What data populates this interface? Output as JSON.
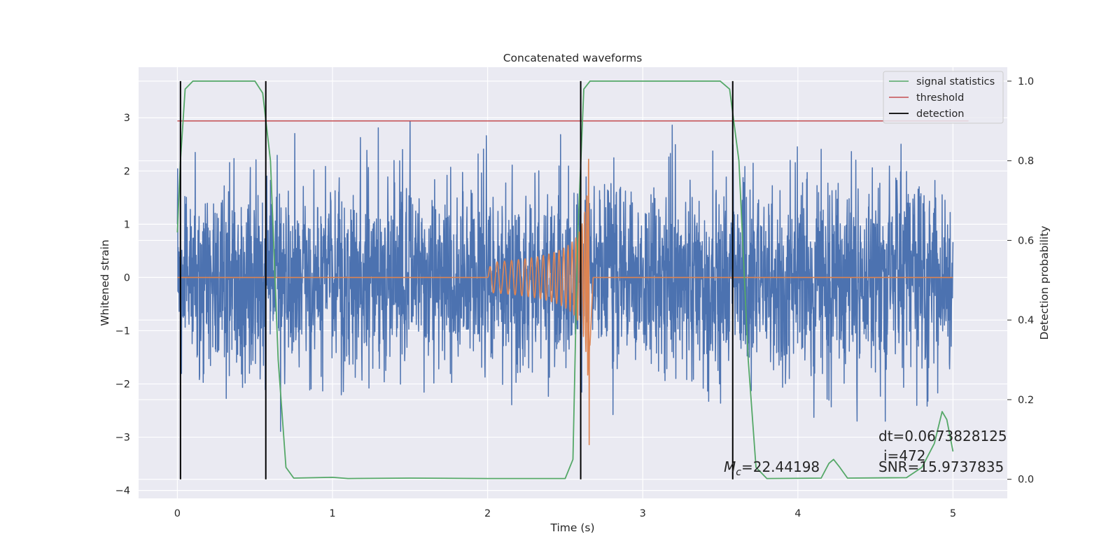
{
  "chart_data": {
    "type": "line",
    "title": "Concatenated waveforms",
    "xlabel": "Time (s)",
    "ylabel_left": "Whitened strain",
    "ylabel_right": "Detection probability",
    "xlim": [
      -0.25,
      5.35
    ],
    "ylim_left": [
      -4.15,
      3.95
    ],
    "ylim_right": [
      -0.048,
      1.035
    ],
    "x_ticks": [
      0,
      1,
      2,
      3,
      4,
      5
    ],
    "y_left_ticks": [
      -4,
      -3,
      -2,
      -1,
      0,
      1,
      2,
      3
    ],
    "y_right_ticks": [
      0.0,
      0.2,
      0.4,
      0.6,
      0.8,
      1.0
    ],
    "grid": true,
    "legend_position": "upper right",
    "legend": [
      {
        "label": "signal statistics",
        "color": "#55a868"
      },
      {
        "label": "threshold",
        "color": "#c44e52"
      },
      {
        "label": "detection",
        "color": "#000000"
      }
    ],
    "series": [
      {
        "axis": "left",
        "color": "#4c72b0",
        "x_range": [
          0,
          5
        ],
        "noise_std": 0.9,
        "peak_range": [
          -3.6,
          3.6
        ]
      },
      {
        "axis": "left",
        "color": "#dd8452",
        "chirp_start": 2.0,
        "chirp_merger": 2.66,
        "flat_value": 0,
        "peak_amplitude": 3.3
      },
      {
        "name": "signal statistics",
        "axis": "right",
        "color": "#55a868",
        "points": [
          [
            0.0,
            0.62
          ],
          [
            0.02,
            0.8
          ],
          [
            0.05,
            0.98
          ],
          [
            0.1,
            1.0
          ],
          [
            0.5,
            1.0
          ],
          [
            0.55,
            0.97
          ],
          [
            0.6,
            0.8
          ],
          [
            0.65,
            0.3
          ],
          [
            0.7,
            0.03
          ],
          [
            0.75,
            0.003
          ],
          [
            1.0,
            0.005
          ],
          [
            1.1,
            0.002
          ],
          [
            1.5,
            0.003
          ],
          [
            2.0,
            0.002
          ],
          [
            2.5,
            0.002
          ],
          [
            2.55,
            0.05
          ],
          [
            2.58,
            0.6
          ],
          [
            2.62,
            0.98
          ],
          [
            2.66,
            1.0
          ],
          [
            3.5,
            1.0
          ],
          [
            3.56,
            0.98
          ],
          [
            3.62,
            0.8
          ],
          [
            3.68,
            0.3
          ],
          [
            3.73,
            0.03
          ],
          [
            3.8,
            0.002
          ],
          [
            4.15,
            0.003
          ],
          [
            4.2,
            0.04
          ],
          [
            4.23,
            0.05
          ],
          [
            4.27,
            0.03
          ],
          [
            4.32,
            0.003
          ],
          [
            4.7,
            0.004
          ],
          [
            4.8,
            0.03
          ],
          [
            4.88,
            0.09
          ],
          [
            4.93,
            0.17
          ],
          [
            4.96,
            0.15
          ],
          [
            5.0,
            0.07
          ]
        ]
      },
      {
        "name": "threshold",
        "axis": "right",
        "color": "#c44e52",
        "value": 0.9,
        "x_range": [
          0,
          5.1
        ]
      },
      {
        "name": "detection",
        "axis": "right",
        "color": "#000000",
        "x": [
          0.02,
          0.57,
          2.6,
          3.58
        ],
        "y_range": [
          0,
          1
        ]
      }
    ],
    "annotations": {
      "mc_prefix": "M",
      "mc_sub": "c",
      "mc_value": "=22.44198",
      "dt": "dt=0.0673828125",
      "i": "i=472",
      "snr": "SNR=15.9737835"
    }
  }
}
